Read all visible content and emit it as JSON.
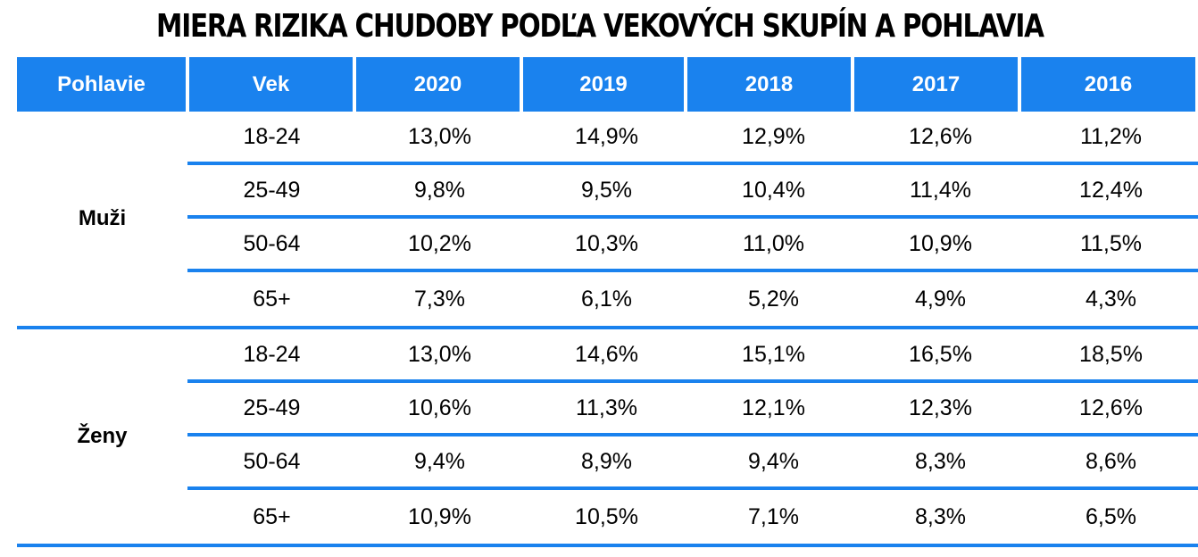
{
  "title": "MIERA RIZIKA CHUDOBY PODĽA VEKOVÝCH SKUPÍN A POHLAVIA",
  "colors": {
    "accent": "#1a82ee",
    "header_text": "#ffffff"
  },
  "columns": [
    "Pohlavie",
    "Vek",
    "2020",
    "2019",
    "2018",
    "2017",
    "2016"
  ],
  "groups": [
    {
      "gender": "Muži",
      "rows": [
        {
          "age": "18-24",
          "values": [
            "13,0%",
            "14,9%",
            "12,9%",
            "12,6%",
            "11,2%"
          ]
        },
        {
          "age": "25-49",
          "values": [
            "9,8%",
            "9,5%",
            "10,4%",
            "11,4%",
            "12,4%"
          ]
        },
        {
          "age": "50-64",
          "values": [
            "10,2%",
            "10,3%",
            "11,0%",
            "10,9%",
            "11,5%"
          ]
        },
        {
          "age": "65+",
          "values": [
            "7,3%",
            "6,1%",
            "5,2%",
            "4,9%",
            "4,3%"
          ]
        }
      ]
    },
    {
      "gender": "Ženy",
      "rows": [
        {
          "age": "18-24",
          "values": [
            "13,0%",
            "14,6%",
            "15,1%",
            "16,5%",
            "18,5%"
          ]
        },
        {
          "age": "25-49",
          "values": [
            "10,6%",
            "11,3%",
            "12,1%",
            "12,3%",
            "12,6%"
          ]
        },
        {
          "age": "50-64",
          "values": [
            "9,4%",
            "8,9%",
            "9,4%",
            "8,3%",
            "8,6%"
          ]
        },
        {
          "age": "65+",
          "values": [
            "10,9%",
            "10,5%",
            "7,1%",
            "8,3%",
            "6,5%"
          ]
        }
      ]
    }
  ]
}
